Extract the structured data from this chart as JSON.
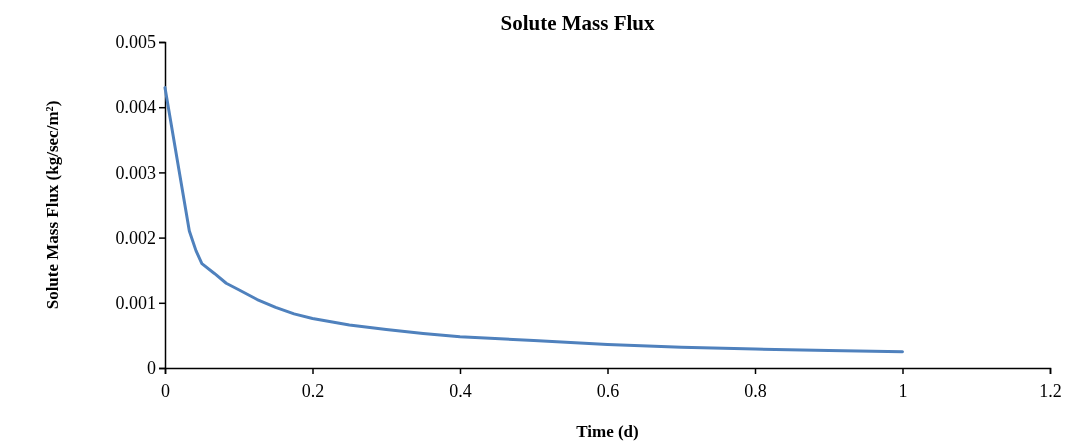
{
  "chart_data": {
    "type": "line",
    "title": "Solute Mass Flux",
    "xlabel": "Time (d)",
    "ylabel": "Solute Mass Flux (kg/sec/m²)",
    "x": [
      0,
      0.033,
      0.042,
      0.05,
      0.067,
      0.083,
      0.1,
      0.125,
      0.15,
      0.175,
      0.2,
      0.25,
      0.3,
      0.35,
      0.4,
      0.5,
      0.6,
      0.7,
      0.8,
      0.9,
      1.0
    ],
    "series": [
      {
        "color": "#4f81bd",
        "values": [
          0.0043,
          0.0021,
          0.0018,
          0.0016,
          0.00145,
          0.0013,
          0.0012,
          0.00105,
          0.00093,
          0.00083,
          0.00076,
          0.00066,
          0.00059,
          0.00053,
          0.00048,
          0.00042,
          0.00036,
          0.00032,
          0.00029,
          0.00027,
          0.00025
        ]
      }
    ],
    "xlim": [
      0,
      1.2
    ],
    "xticks": [
      0,
      0.2,
      0.4,
      0.6,
      0.8,
      1,
      1.2
    ],
    "ylim": [
      0,
      0.005
    ],
    "yticks": [
      0,
      0.001,
      0.002,
      0.003,
      0.004,
      0.005
    ],
    "grid": false,
    "marker": "none",
    "line_style": "solid"
  }
}
